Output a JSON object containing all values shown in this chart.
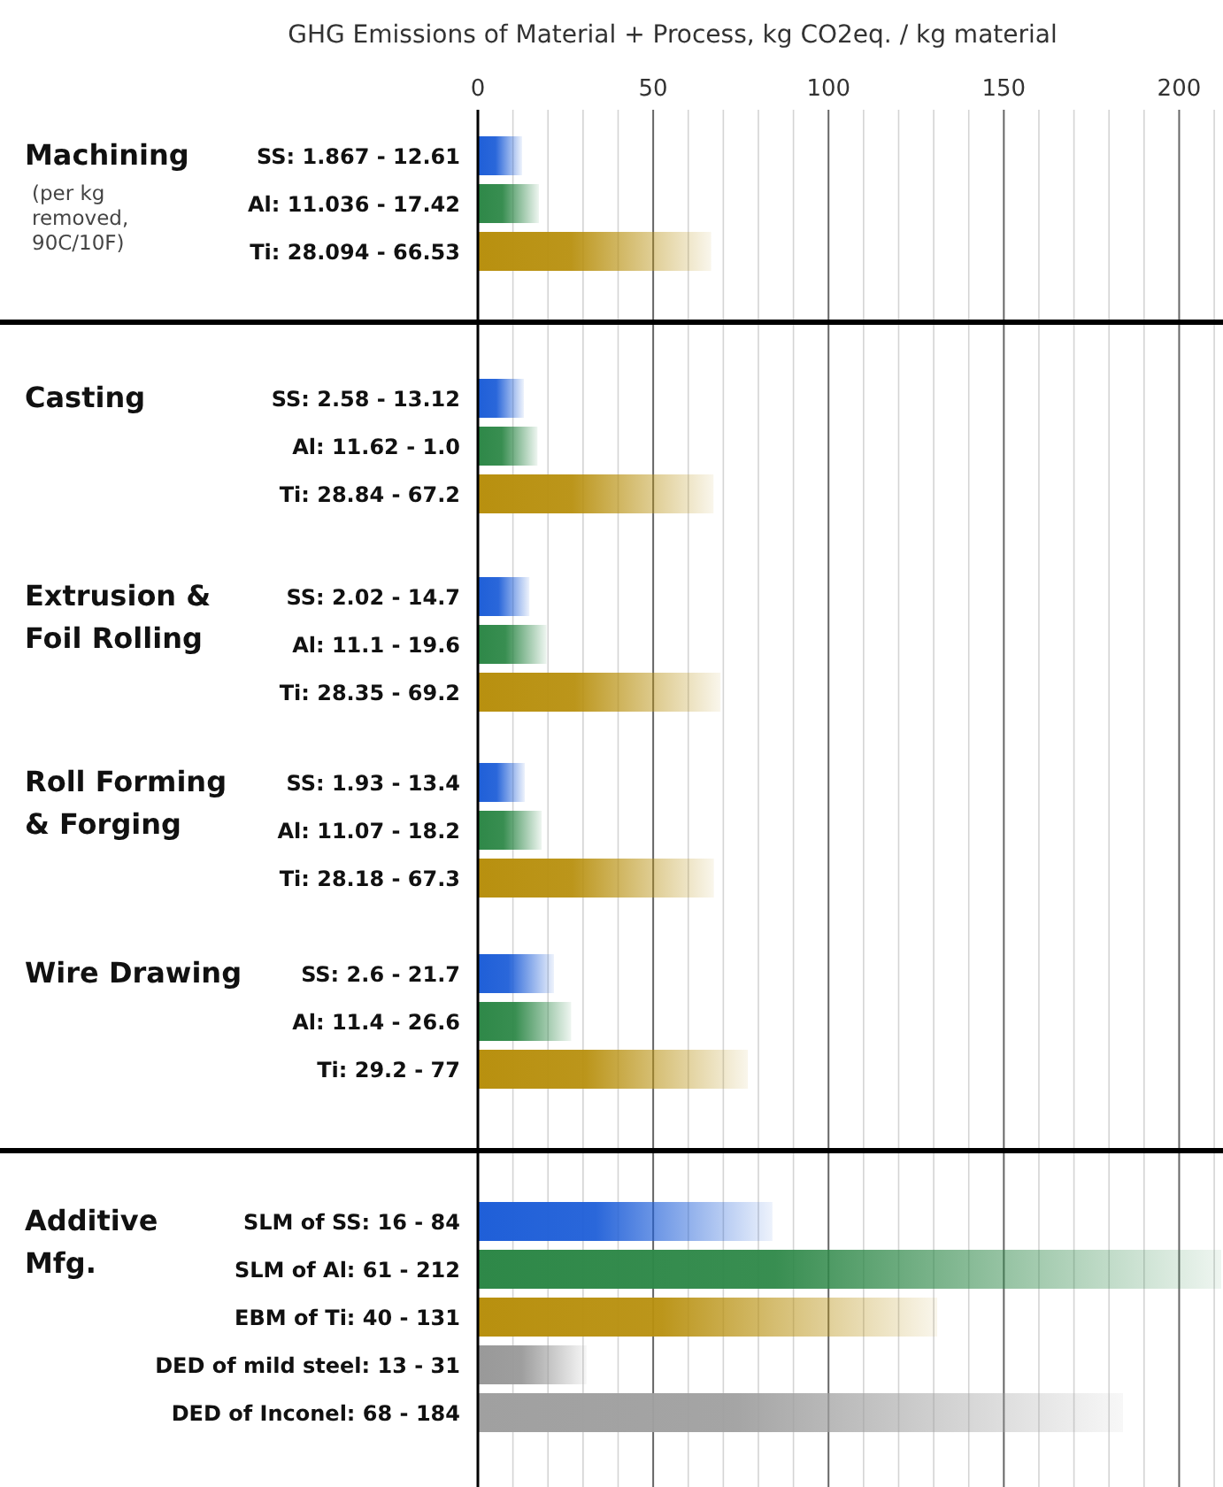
{
  "chart_data": [
    {
      "type": "bar",
      "orientation": "horizontal",
      "title": "Machining",
      "subtitle": "(per kg removed, 90C/10F)",
      "xlabel": "GHG Emissions of Material + Process, kg CO2eq. / kg material",
      "categories": [
        "SS: 1.867 - 12.61",
        "Al: 11.036 - 17.42",
        "Ti: 28.094 - 66.53"
      ],
      "values": [
        12.61,
        17.42,
        66.53
      ],
      "colors": [
        "#1f5fd8",
        "#2e8848",
        "#b8900f"
      ],
      "xlim": [
        0,
        212
      ],
      "xticks": [
        0,
        {
          "value": 10,
          "label": null
        },
        {
          "value": 20,
          "label": null
        },
        {
          "value": 30,
          "label": null
        },
        {
          "value": 40,
          "label": null
        },
        50,
        {
          "value": 60,
          "label": null
        },
        {
          "value": 70,
          "label": null
        },
        {
          "value": 80,
          "label": null
        },
        {
          "value": 90,
          "label": null
        },
        100,
        {
          "value": 110,
          "label": null
        },
        {
          "value": 120,
          "label": null
        },
        {
          "value": 130,
          "label": null
        },
        {
          "value": 140,
          "label": null
        },
        150,
        {
          "value": 160,
          "label": null
        },
        {
          "value": 170,
          "label": null
        },
        {
          "value": 180,
          "label": null
        },
        {
          "value": 190,
          "label": null
        },
        200,
        {
          "value": 210,
          "label": null
        }
      ],
      "grid": "x"
    },
    {
      "type": "bar",
      "orientation": "horizontal",
      "title": "Casting",
      "categories": [
        "SS: 2.58 - 13.12",
        "Al: 11.62 - 1.0",
        "Ti: 28.84 - 67.2"
      ],
      "values": [
        13.12,
        17,
        67.2
      ],
      "colors": [
        "#1f5fd8",
        "#2e8848",
        "#b8900f"
      ],
      "xlim": [
        0,
        212
      ],
      "xticks": [
        0,
        {
          "value": 10,
          "label": null
        },
        {
          "value": 20,
          "label": null
        },
        {
          "value": 30,
          "label": null
        },
        {
          "value": 40,
          "label": null
        },
        50,
        {
          "value": 60,
          "label": null
        },
        {
          "value": 70,
          "label": null
        },
        {
          "value": 80,
          "label": null
        },
        {
          "value": 90,
          "label": null
        },
        100,
        {
          "value": 110,
          "label": null
        },
        {
          "value": 120,
          "label": null
        },
        {
          "value": 130,
          "label": null
        },
        {
          "value": 140,
          "label": null
        },
        150,
        {
          "value": 160,
          "label": null
        },
        {
          "value": 170,
          "label": null
        },
        {
          "value": 180,
          "label": null
        },
        {
          "value": 190,
          "label": null
        },
        200,
        {
          "value": 210,
          "label": null
        }
      ],
      "grid": "x",
      "tick_labels": "y"
    },
    {
      "type": "bar",
      "orientation": "horizontal",
      "title": "Extrusion & Foil Rolling",
      "categories": [
        "SS: 2.02 - 14.7",
        "Al: 11.1 - 19.6",
        "Ti: 28.35 - 69.2"
      ],
      "values": [
        14.7,
        19.6,
        69.2
      ],
      "colors": [
        "#1f5fd8",
        "#2e8848",
        "#b8900f"
      ],
      "xlim": [
        0,
        212
      ],
      "xticks": [
        0,
        {
          "value": 10,
          "label": null
        },
        {
          "value": 20,
          "label": null
        },
        {
          "value": 30,
          "label": null
        },
        {
          "value": 40,
          "label": null
        },
        50,
        {
          "value": 60,
          "label": null
        },
        {
          "value": 70,
          "label": null
        },
        {
          "value": 80,
          "label": null
        },
        {
          "value": 90,
          "label": null
        },
        100,
        {
          "value": 110,
          "label": null
        },
        {
          "value": 120,
          "label": null
        },
        {
          "value": 130,
          "label": null
        },
        {
          "value": 140,
          "label": null
        },
        150,
        {
          "value": 160,
          "label": null
        },
        {
          "value": 170,
          "label": null
        },
        {
          "value": 180,
          "label": null
        },
        {
          "value": 190,
          "label": null
        },
        200,
        {
          "value": 210,
          "label": null
        }
      ],
      "grid": "x",
      "tick_labels": "y"
    },
    {
      "type": "bar",
      "orientation": "horizontal",
      "title": "Roll Forming & Forging",
      "categories": [
        "SS: 1.93 - 13.4",
        "Al: 11.07 - 18.2",
        "Ti: 28.18 - 67.3"
      ],
      "values": [
        13.4,
        18.2,
        67.3
      ],
      "colors": [
        "#1f5fd8",
        "#2e8848",
        "#b8900f"
      ],
      "xlim": [
        0,
        212
      ],
      "xticks": [
        0,
        {
          "value": 10,
          "label": null
        },
        {
          "value": 20,
          "label": null
        },
        {
          "value": 30,
          "label": null
        },
        {
          "value": 40,
          "label": null
        },
        50,
        {
          "value": 60,
          "label": null
        },
        {
          "value": 70,
          "label": null
        },
        {
          "value": 80,
          "label": null
        },
        {
          "value": 90,
          "label": null
        },
        100,
        {
          "value": 110,
          "label": null
        },
        {
          "value": 120,
          "label": null
        },
        {
          "value": 130,
          "label": null
        },
        {
          "value": 140,
          "label": null
        },
        150,
        {
          "value": 160,
          "label": null
        },
        {
          "value": 170,
          "label": null
        },
        {
          "value": 180,
          "label": null
        },
        {
          "value": 190,
          "label": null
        },
        200,
        {
          "value": 210,
          "label": null
        }
      ],
      "grid": "x",
      "tick_labels": "y"
    },
    {
      "type": "bar",
      "orientation": "horizontal",
      "title": "Wire Drawing",
      "categories": [
        "SS: 2.6 - 21.7",
        "Al: 11.4 - 26.6",
        "Ti: 29.2 - 77"
      ],
      "values": [
        21.7,
        26.6,
        77
      ],
      "colors": [
        "#1f5fd8",
        "#2e8848",
        "#b8900f"
      ],
      "xlim": [
        0,
        212
      ],
      "xticks": [
        0,
        {
          "value": 10,
          "label": null
        },
        {
          "value": 20,
          "label": null
        },
        {
          "value": 30,
          "label": null
        },
        {
          "value": 40,
          "label": null
        },
        50,
        {
          "value": 60,
          "label": null
        },
        {
          "value": 70,
          "label": null
        },
        {
          "value": 80,
          "label": null
        },
        {
          "value": 90,
          "label": null
        },
        100,
        {
          "value": 110,
          "label": null
        },
        {
          "value": 120,
          "label": null
        },
        {
          "value": 130,
          "label": null
        },
        {
          "value": 140,
          "label": null
        },
        150,
        {
          "value": 160,
          "label": null
        },
        {
          "value": 170,
          "label": null
        },
        {
          "value": 180,
          "label": null
        },
        {
          "value": 190,
          "label": null
        },
        200,
        {
          "value": 210,
          "label": null
        }
      ],
      "grid": "x",
      "tick_labels": "y"
    },
    {
      "type": "bar",
      "orientation": "horizontal",
      "title": "Additive Mfg.",
      "categories": [
        "SLM of SS: 16 - 84",
        "SLM of Al: 61 - 212",
        "EBM of Ti: 40 - 131",
        "DED of mild steel: 13 - 31",
        "DED of Inconel: 68 - 184"
      ],
      "values": [
        84,
        212,
        131,
        31,
        184
      ],
      "colors": [
        "#1f5fd8",
        "#2e8848",
        "#b8900f",
        "#999999",
        "#a0a0a0"
      ],
      "xlim": [
        0,
        212
      ],
      "xticks": [
        0,
        {
          "value": 10,
          "label": null
        },
        {
          "value": 20,
          "label": null
        },
        {
          "value": 30,
          "label": null
        },
        {
          "value": 40,
          "label": null
        },
        50,
        {
          "value": 60,
          "label": null
        },
        {
          "value": 70,
          "label": null
        },
        {
          "value": 80,
          "label": null
        },
        {
          "value": 90,
          "label": null
        },
        100,
        {
          "value": 110,
          "label": null
        },
        {
          "value": 120,
          "label": null
        },
        {
          "value": 130,
          "label": null
        },
        {
          "value": 140,
          "label": null
        },
        150,
        {
          "value": 160,
          "label": null
        },
        {
          "value": 170,
          "label": null
        },
        {
          "value": 180,
          "label": null
        },
        {
          "value": 190,
          "label": null
        },
        200,
        {
          "value": 210,
          "label": null
        }
      ],
      "grid": "x",
      "tick_labels": "y"
    }
  ]
}
